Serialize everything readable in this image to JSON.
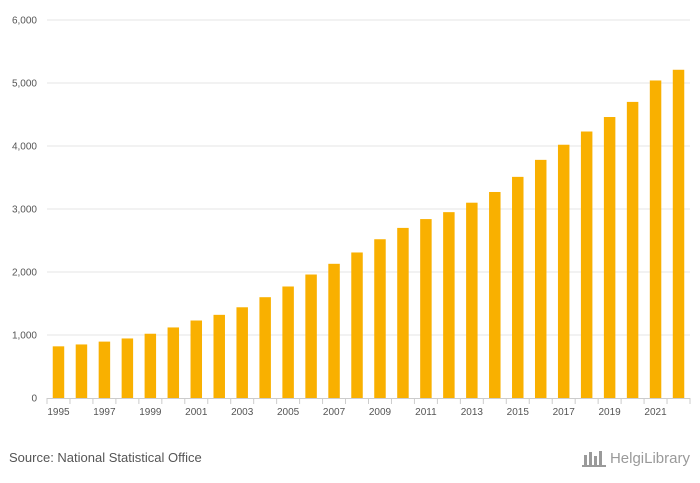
{
  "chart_data": {
    "type": "bar",
    "title": "",
    "xlabel": "",
    "ylabel": "",
    "ylim": [
      0,
      6000
    ],
    "grid": true,
    "y_ticks": [
      0,
      1000,
      2000,
      3000,
      4000,
      5000,
      6000
    ],
    "y_tick_labels": [
      "0",
      "1,000",
      "2,000",
      "3,000",
      "4,000",
      "5,000",
      "6,000"
    ],
    "categories": [
      "1995",
      "1996",
      "1997",
      "1998",
      "1999",
      "2000",
      "2001",
      "2002",
      "2003",
      "2004",
      "2005",
      "2006",
      "2007",
      "2008",
      "2009",
      "2010",
      "2011",
      "2012",
      "2013",
      "2014",
      "2015",
      "2016",
      "2017",
      "2018",
      "2019",
      "2020",
      "2021",
      "2022"
    ],
    "x_tick_labels": [
      "1995",
      "1997",
      "1999",
      "2001",
      "2003",
      "2005",
      "2007",
      "2009",
      "2011",
      "2013",
      "2015",
      "2017",
      "2019",
      "2021"
    ],
    "values": [
      820,
      850,
      895,
      945,
      1020,
      1120,
      1230,
      1320,
      1440,
      1600,
      1770,
      1960,
      2130,
      2310,
      2520,
      2700,
      2840,
      2950,
      3100,
      3270,
      3510,
      3780,
      4020,
      4230,
      4460,
      4700,
      5040,
      5210
    ],
    "bar_color": "#f9b000"
  },
  "footer": {
    "source": "Source: National Statistical Office",
    "brand": "HelgiLibrary"
  },
  "colors": {
    "grid": "#e6e6e6",
    "axis": "#cccccc",
    "text": "#555555",
    "brand": "#9a9a9a"
  }
}
